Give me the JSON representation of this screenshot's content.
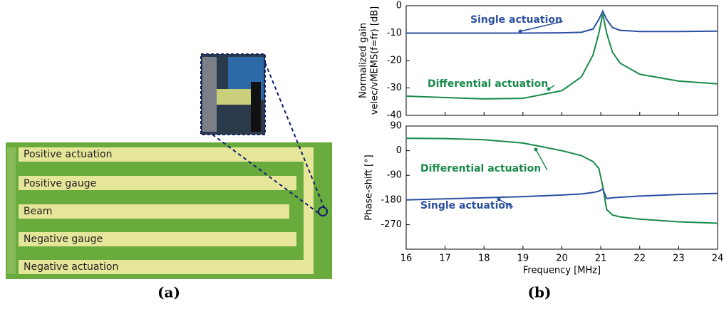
{
  "panel_a": {
    "labels": [
      "Positive actuation",
      "Positive gauge",
      "Beam",
      "Negative gauge",
      "Negative actuation"
    ],
    "caption": "(a)"
  },
  "panel_b": {
    "caption": "(b)"
  },
  "chart_data": [
    {
      "type": "line",
      "ylabel": [
        "Normalized gain",
        "velec/vMEMS(f=fr) [dB]"
      ],
      "x": [
        16,
        17,
        18,
        19,
        20,
        20.5,
        20.8,
        20.95,
        21.05,
        21.15,
        21.3,
        21.5,
        22,
        23,
        24
      ],
      "xlim": [
        16,
        24
      ],
      "xticks": [
        16,
        17,
        18,
        19,
        20,
        21,
        22,
        23,
        24
      ],
      "xtick_labels": false,
      "ylim": [
        -40,
        0
      ],
      "yticks": [
        -40,
        -30,
        -20,
        -10,
        0
      ],
      "series": [
        {
          "name": "Single actuation",
          "color": "#2b4fa0",
          "values": [
            -10,
            -10,
            -10,
            -10,
            -9.9,
            -9.7,
            -8.5,
            -5,
            -2,
            -5,
            -8,
            -9,
            -9.4,
            -9.4,
            -9.3
          ]
        },
        {
          "name": "Differential actuation",
          "color": "#1a8a4a",
          "values": [
            -33,
            -33.5,
            -34,
            -33.8,
            -31,
            -26,
            -18,
            -10,
            -3,
            -10,
            -17,
            -21,
            -25,
            -27.5,
            -28.5
          ]
        }
      ]
    },
    {
      "type": "line",
      "ylabel": [
        "Phase-shift [°]"
      ],
      "xlabel": "Frequency [MHz]",
      "x": [
        16,
        17,
        18,
        19,
        20,
        20.5,
        20.8,
        20.95,
        21.05,
        21.15,
        21.3,
        21.5,
        22,
        23,
        24
      ],
      "xlim": [
        16,
        24
      ],
      "xticks": [
        16,
        17,
        18,
        19,
        20,
        21,
        22,
        23,
        24
      ],
      "xtick_labels": true,
      "ylim": [
        -360,
        90
      ],
      "yticks": [
        -270,
        -180,
        -90,
        0,
        90
      ],
      "series": [
        {
          "name": "Differential actuation",
          "color": "#1a8a4a",
          "values": [
            45,
            44,
            40,
            28,
            0,
            -18,
            -40,
            -65,
            -130,
            -215,
            -235,
            -242,
            -250,
            -260,
            -265
          ]
        },
        {
          "name": "Single actuation",
          "color": "#2b4fa0",
          "values": [
            -180,
            -176,
            -172,
            -168,
            -162,
            -158,
            -153,
            -148,
            -140,
            -175,
            -172,
            -170,
            -166,
            -160,
            -156
          ]
        }
      ]
    }
  ]
}
